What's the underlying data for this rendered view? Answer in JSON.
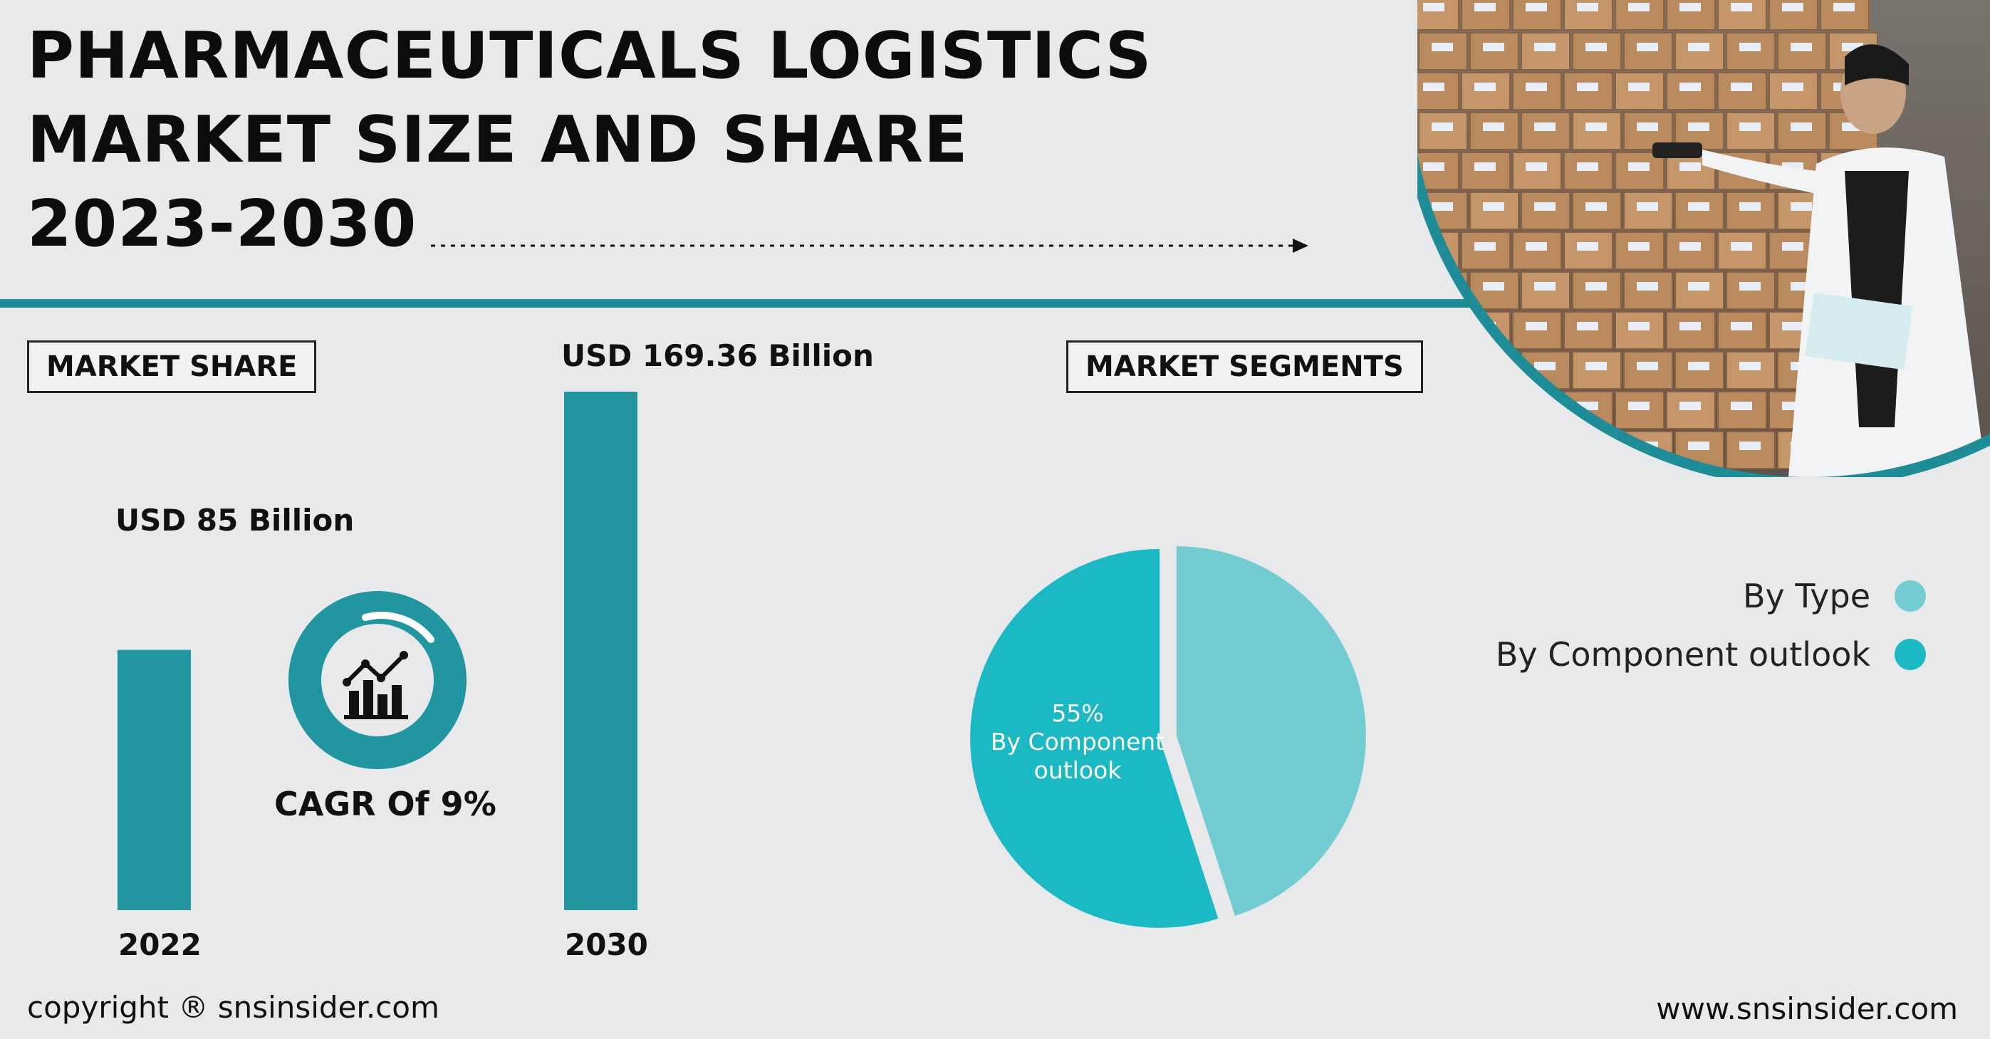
{
  "title": {
    "line1": "PHARMACEUTICALS LOGISTICS",
    "line2": "MARKET SIZE AND SHARE",
    "line3": "2023-2030"
  },
  "market_share_label": "MARKET SHARE",
  "market_segments_label": "MARKET SEGMENTS",
  "cagr_text": "CAGR Of 9%",
  "colors": {
    "teal_dark": "#2196a1",
    "pie_component": "#1ab9c3",
    "pie_type": "#74ccd3",
    "divider": "#1f8d97"
  },
  "chart_data": [
    {
      "type": "bar",
      "categories": [
        "2022",
        "2030"
      ],
      "values": [
        85,
        169.36
      ],
      "value_labels": [
        "USD 85 Billion",
        "USD 169.36 Billion"
      ],
      "unit": "USD Billion"
    },
    {
      "type": "pie",
      "labels": [
        "By Type",
        "By Component outlook"
      ],
      "values": [
        45,
        55
      ],
      "slice_label": {
        "percent": "55%",
        "line1": "By Component",
        "line2": "outlook"
      },
      "legend_position": "right"
    }
  ],
  "legend": [
    {
      "label": "By Type",
      "color": "#74ccd3"
    },
    {
      "label": "By Component outlook",
      "color": "#1ab9c3"
    }
  ],
  "footer": {
    "copyright": "copyright ® snsinsider.com",
    "website": "www.snsinsider.com"
  },
  "icons": {
    "growth": "bar-chart-with-trend-line-icon",
    "arrow": "dotted-arrow-icon",
    "photo": "warehouse-worker-photo"
  }
}
